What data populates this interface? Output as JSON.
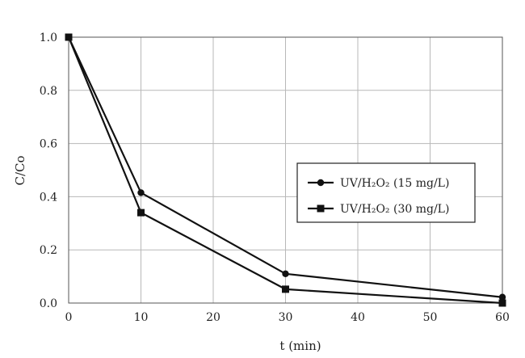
{
  "chart_data": {
    "type": "line",
    "xlabel": "t (min)",
    "ylabel": "C/Co",
    "xlim": [
      0,
      60
    ],
    "ylim": [
      0,
      1
    ],
    "x_ticks": [
      "0",
      "10",
      "20",
      "30",
      "40",
      "50",
      "60"
    ],
    "y_ticks": [
      "0.0",
      "0.2",
      "0.4",
      "0.6",
      "0.8",
      "1.0"
    ],
    "grid": true,
    "legend_position": "right",
    "series": [
      {
        "name": "UV/H₂O₂ (15 mg/L)",
        "marker": "circle",
        "color": "#111111",
        "x": [
          0,
          10,
          30,
          60
        ],
        "y": [
          1.0,
          0.415,
          0.11,
          0.022
        ]
      },
      {
        "name": "UV/H₂O₂ (30 mg/L)",
        "marker": "square",
        "color": "#111111",
        "x": [
          0,
          10,
          30,
          60
        ],
        "y": [
          1.0,
          0.34,
          0.052,
          0.0
        ]
      }
    ]
  }
}
